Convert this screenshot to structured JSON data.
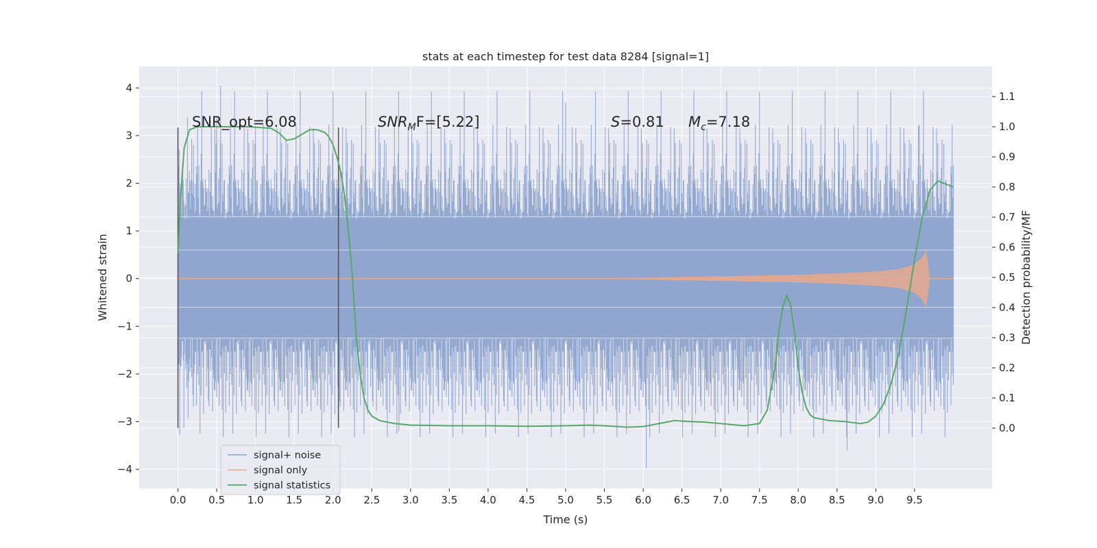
{
  "chart_data": {
    "type": "line",
    "title": "stats at each timestep for test data 8284 [signal=1]",
    "xlabel": "Time (s)",
    "ylabel": "Whitened strain",
    "ylabel_right": "Detection probability/MF",
    "xlim": [
      -0.5,
      10.5
    ],
    "ylim": [
      -4.4,
      4.45
    ],
    "ylim_right": [
      -0.2,
      1.2
    ],
    "x_ticks": [
      0.0,
      0.5,
      1.0,
      1.5,
      2.0,
      2.5,
      3.0,
      3.5,
      4.0,
      4.5,
      5.0,
      5.5,
      6.0,
      6.5,
      7.0,
      7.5,
      8.0,
      8.5,
      9.0,
      9.5
    ],
    "x_tick_labels": [
      "0.0",
      "0.5",
      "1.0",
      "1.5",
      "2.0",
      "2.5",
      "3.0",
      "3.5",
      "4.0",
      "4.5",
      "5.0",
      "5.5",
      "6.0",
      "6.5",
      "7.0",
      "7.5",
      "8.0",
      "8.5",
      "9.0",
      "9.5"
    ],
    "y_ticks": [
      -4,
      -3,
      -2,
      -1,
      0,
      1,
      2,
      3,
      4
    ],
    "y_tick_labels": [
      "−4",
      "−3",
      "−2",
      "−1",
      "0",
      "1",
      "2",
      "3",
      "4"
    ],
    "y_right_ticks": [
      0.0,
      0.1,
      0.2,
      0.3,
      0.4,
      0.5,
      0.6,
      0.7,
      0.8,
      0.9,
      1.0,
      1.1
    ],
    "y_right_tick_labels": [
      "0.0",
      "0.1",
      "0.2",
      "0.3",
      "0.4",
      "0.5",
      "0.6",
      "0.7",
      "0.8",
      "0.9",
      "1.0",
      "1.1"
    ],
    "grid": true,
    "legend_position": "lower-left",
    "annotations": {
      "snr_opt": "SNR_opt=6.08",
      "snr_mf_prefix": "SNR",
      "snr_mf_sub": "M",
      "snr_mf_suffix": "F=[5.22]",
      "s_symbol": "S",
      "s_value": "=0.81",
      "mc_symbol": "M",
      "mc_sub": "c",
      "mc_value": "=7.18"
    },
    "vertical_markers": [
      0.0,
      2.07
    ],
    "series": [
      {
        "name": "signal+ noise",
        "color": "#8fa5cd",
        "axis": "left",
        "x_range": [
          0.0,
          10.0
        ],
        "envelope_low": -2.0,
        "envelope_high": 2.1,
        "min": -3.97,
        "max": 4.05
      },
      {
        "name": "signal only",
        "color": "#e8a88d",
        "axis": "left",
        "envelope": {
          "x": [
            5.0,
            6.0,
            7.0,
            8.0,
            8.5,
            9.0,
            9.3,
            9.5,
            9.6,
            9.65,
            9.7
          ],
          "amp": [
            0.0,
            0.02,
            0.05,
            0.08,
            0.11,
            0.15,
            0.2,
            0.3,
            0.45,
            0.6,
            0.0
          ]
        }
      },
      {
        "name": "signal statistics",
        "color": "#55a868",
        "axis": "right",
        "x": [
          0.0,
          0.03,
          0.08,
          0.15,
          0.25,
          0.4,
          0.6,
          0.9,
          1.2,
          1.3,
          1.4,
          1.5,
          1.6,
          1.7,
          1.8,
          1.9,
          1.95,
          2.0,
          2.05,
          2.1,
          2.15,
          2.2,
          2.25,
          2.3,
          2.35,
          2.4,
          2.45,
          2.5,
          2.6,
          2.7,
          2.8,
          3.0,
          3.5,
          4.0,
          4.5,
          5.0,
          5.3,
          5.5,
          5.8,
          6.0,
          6.2,
          6.4,
          6.6,
          6.8,
          7.0,
          7.3,
          7.5,
          7.6,
          7.7,
          7.75,
          7.8,
          7.85,
          7.9,
          7.95,
          8.0,
          8.05,
          8.1,
          8.15,
          8.2,
          8.3,
          8.4,
          8.6,
          8.8,
          8.9,
          9.0,
          9.1,
          9.2,
          9.3,
          9.4,
          9.5,
          9.6,
          9.7,
          9.8,
          9.9,
          10.0
        ],
        "y": [
          0.58,
          0.75,
          0.93,
          0.99,
          1.0,
          1.0,
          1.0,
          1.0,
          0.995,
          0.98,
          0.955,
          0.96,
          0.975,
          0.99,
          0.99,
          0.98,
          0.965,
          0.94,
          0.9,
          0.85,
          0.77,
          0.65,
          0.5,
          0.3,
          0.18,
          0.1,
          0.06,
          0.04,
          0.025,
          0.02,
          0.015,
          0.01,
          0.008,
          0.008,
          0.006,
          0.008,
          0.01,
          0.008,
          0.003,
          0.005,
          0.015,
          0.025,
          0.022,
          0.02,
          0.015,
          0.008,
          0.015,
          0.06,
          0.2,
          0.32,
          0.4,
          0.44,
          0.41,
          0.32,
          0.2,
          0.12,
          0.07,
          0.045,
          0.035,
          0.03,
          0.025,
          0.022,
          0.015,
          0.02,
          0.04,
          0.08,
          0.15,
          0.25,
          0.4,
          0.56,
          0.7,
          0.79,
          0.82,
          0.81,
          0.8
        ]
      }
    ]
  }
}
